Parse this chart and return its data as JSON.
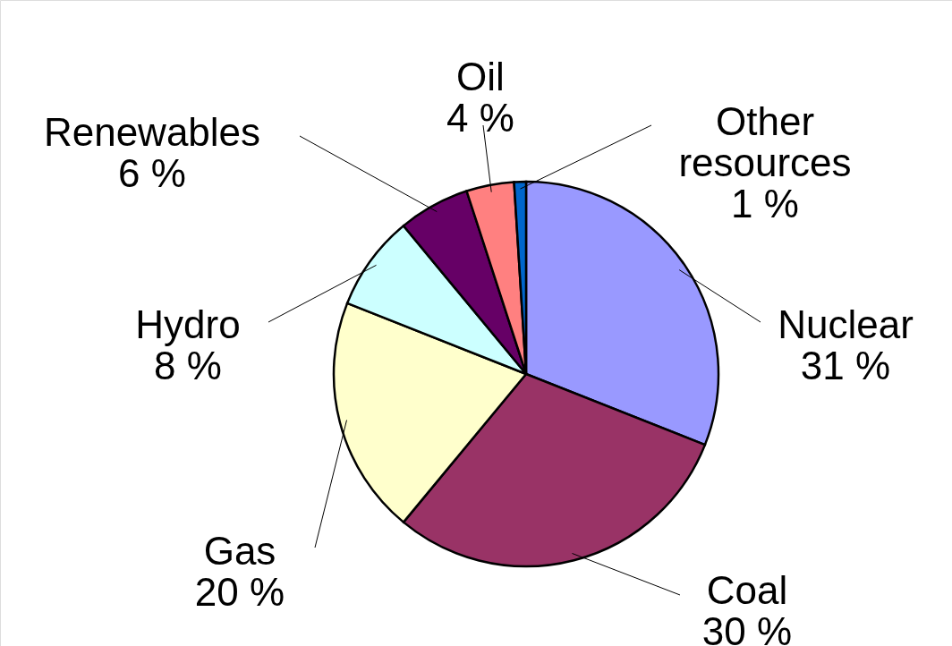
{
  "chart_data": {
    "type": "pie",
    "categories": [
      "Nuclear",
      "Coal",
      "Gas",
      "Hydro",
      "Renewables",
      "Oil",
      "Other resources"
    ],
    "values": [
      31,
      30,
      20,
      8,
      6,
      4,
      1
    ],
    "value_labels": [
      "31 %",
      "30 %",
      "20 %",
      "8 %",
      "6 %",
      "4 %",
      "1 %"
    ],
    "colors": [
      "#9999ff",
      "#993366",
      "#ffffcc",
      "#ccffff",
      "#660066",
      "#ff8080",
      "#0066cc"
    ]
  }
}
